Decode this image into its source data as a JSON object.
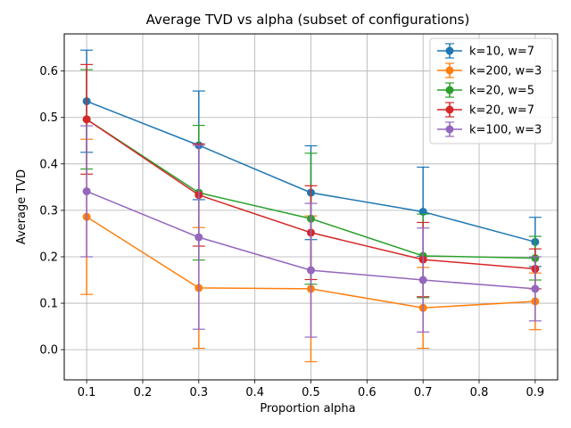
{
  "chart_data": {
    "type": "line",
    "title": "Average TVD vs alpha (subset of configurations)",
    "xlabel": "Proportion alpha",
    "ylabel": "Average TVD",
    "xlim": [
      0.06,
      0.94
    ],
    "ylim": [
      -0.065,
      0.68
    ],
    "xticks": [
      0.1,
      0.2,
      0.3,
      0.4,
      0.5,
      0.6,
      0.7,
      0.8,
      0.9
    ],
    "xtick_labels": [
      "0.1",
      "0.2",
      "0.3",
      "0.4",
      "0.5",
      "0.6",
      "0.7",
      "0.8",
      "0.9"
    ],
    "yticks": [
      0.0,
      0.1,
      0.2,
      0.3,
      0.4,
      0.5,
      0.6
    ],
    "ytick_labels": [
      "0.0",
      "0.1",
      "0.2",
      "0.3",
      "0.4",
      "0.5",
      "0.6"
    ],
    "grid": true,
    "legend_position": "top-right",
    "x": [
      0.1,
      0.3,
      0.5,
      0.7,
      0.9
    ],
    "series": [
      {
        "name": "k=10, w=7",
        "color": "#1f77b4",
        "values": [
          0.535,
          0.44,
          0.338,
          0.297,
          0.232
        ],
        "errors": [
          0.11,
          0.117,
          0.101,
          0.096,
          0.053
        ]
      },
      {
        "name": "k=200, w=3",
        "color": "#ff7f0e",
        "values": [
          0.286,
          0.133,
          0.131,
          0.09,
          0.104
        ],
        "errors": [
          0.167,
          0.13,
          0.157,
          0.087,
          0.061
        ]
      },
      {
        "name": "k=20, w=5",
        "color": "#2ca02c",
        "values": [
          0.496,
          0.338,
          0.282,
          0.202,
          0.197
        ],
        "errors": [
          0.107,
          0.145,
          0.141,
          0.09,
          0.047
        ]
      },
      {
        "name": "k=20, w=7",
        "color": "#d62728",
        "values": [
          0.496,
          0.333,
          0.252,
          0.194,
          0.174
        ],
        "errors": [
          0.118,
          0.11,
          0.101,
          0.08,
          0.043
        ]
      },
      {
        "name": "k=100, w=3",
        "color": "#9467bd",
        "values": [
          0.341,
          0.242,
          0.171,
          0.15,
          0.131
        ],
        "errors": [
          0.141,
          0.198,
          0.144,
          0.112,
          0.069
        ]
      }
    ]
  }
}
